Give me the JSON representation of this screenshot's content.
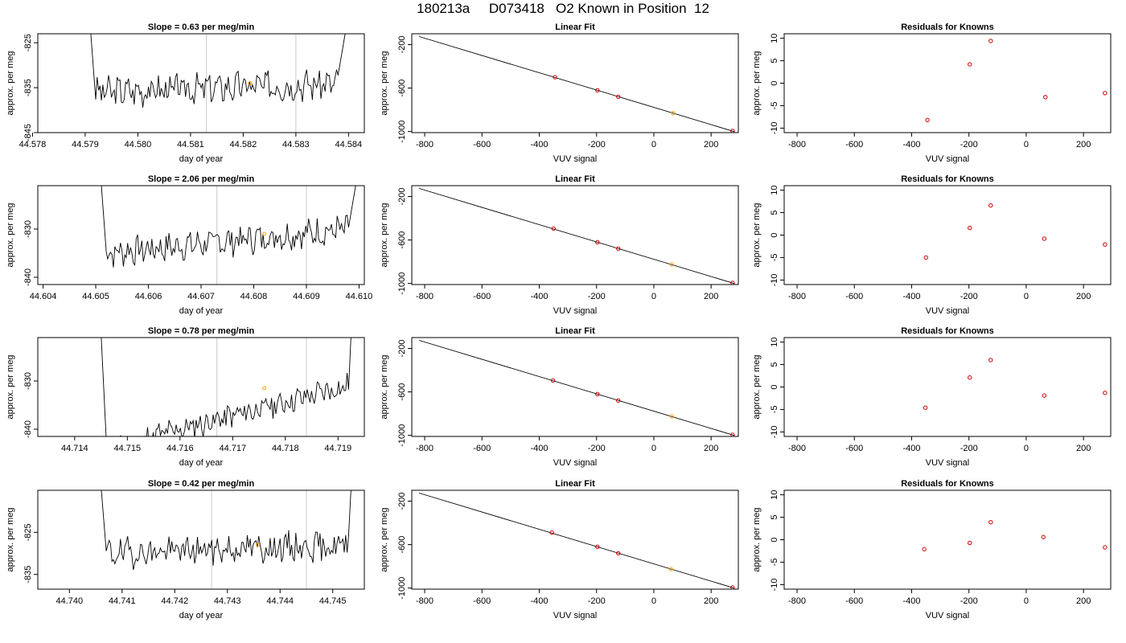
{
  "header": {
    "title": "180213a     D073418   O2 Known in Position  12"
  },
  "colors": {
    "axis": "#000000",
    "trace": "#000000",
    "vline": "#d3d3d3",
    "orange_marker": "#ffa500",
    "red_marker": "#cc0000"
  },
  "chart_data": [
    {
      "type": "line",
      "title": "Slope =  0.63  per meg/min",
      "xlabel": "day of year",
      "ylabel": "approx. per meg",
      "xlim": [
        44.5781,
        44.5843
      ],
      "ylim": [
        -845,
        -823
      ],
      "xticks": [
        44.578,
        44.579,
        44.58,
        44.581,
        44.582,
        44.583,
        44.584
      ],
      "xtick_labels": [
        "44.578",
        "44.579",
        "44.580",
        "44.581",
        "44.582",
        "44.583",
        "44.584"
      ],
      "yticks": [
        -845,
        -835,
        -825
      ],
      "ytick_labels": [
        "-845",
        "-835",
        "-825"
      ],
      "vlines": [
        44.5813,
        44.583
      ],
      "marker": {
        "x": 44.58213,
        "y": -834
      },
      "series": [
        {
          "x0": 44.5792,
          "x1": 44.5838,
          "base": -836,
          "trend": 2,
          "seed": 3,
          "noise": 1.8
        }
      ],
      "spikes": {
        "left_x": 44.5791,
        "left_y": -822,
        "right_x": 44.58395,
        "right_y": -822
      }
    },
    {
      "type": "scatter",
      "title": "Linear Fit",
      "xlabel": "VUV signal",
      "ylabel": "approx. per meg",
      "xlim": [
        -845,
        295
      ],
      "ylim": [
        -1010,
        -100
      ],
      "xticks": [
        -800,
        -600,
        -400,
        -200,
        0,
        200
      ],
      "xtick_labels": [
        "-800",
        "-600",
        "-400",
        "-200",
        "0",
        "200"
      ],
      "yticks": [
        -1000,
        -600,
        -200
      ],
      "ytick_labels": [
        "-1000",
        "-600",
        "-200"
      ],
      "line": {
        "x": [
          -820,
          280
        ],
        "y": [
          -125,
          -1000
        ]
      },
      "points": [
        {
          "x": -345,
          "y": -500,
          "color": "#cc0000"
        },
        {
          "x": -197,
          "y": -620,
          "color": "#cc0000"
        },
        {
          "x": -124,
          "y": -680,
          "color": "#cc0000"
        },
        {
          "x": 67,
          "y": -830,
          "color": "#ffa500"
        },
        {
          "x": 275,
          "y": -995,
          "color": "#cc0000"
        }
      ]
    },
    {
      "type": "scatter",
      "title": "Residuals for Knowns",
      "xlabel": "VUV signal",
      "ylabel": "approx. per meg",
      "xlim": [
        -845,
        295
      ],
      "ylim": [
        -11,
        11
      ],
      "xticks": [
        -800,
        -600,
        -400,
        -200,
        0,
        200
      ],
      "xtick_labels": [
        "-800",
        "-600",
        "-400",
        "-200",
        "0",
        "200"
      ],
      "yticks": [
        -10,
        -5,
        0,
        5,
        10
      ],
      "ytick_labels": [
        "-10",
        "-5",
        "0",
        "5",
        "10"
      ],
      "points": [
        {
          "x": -345,
          "y": -8.2,
          "color": "#cc0000"
        },
        {
          "x": -197,
          "y": 4.2,
          "color": "#cc0000"
        },
        {
          "x": -124,
          "y": 9.4,
          "color": "#cc0000"
        },
        {
          "x": 67,
          "y": -3.1,
          "color": "#cc0000"
        },
        {
          "x": 275,
          "y": -2.2,
          "color": "#cc0000"
        }
      ]
    },
    {
      "type": "line",
      "title": "Slope =  2.06  per meg/min",
      "xlabel": "day of year",
      "ylabel": "approx. per meg",
      "xlim": [
        44.6039,
        44.6101
      ],
      "ylim": [
        -841.5,
        -821
      ],
      "xticks": [
        44.604,
        44.605,
        44.606,
        44.607,
        44.608,
        44.609,
        44.61
      ],
      "xtick_labels": [
        "44.604",
        "44.605",
        "44.606",
        "44.607",
        "44.608",
        "44.609",
        "44.610"
      ],
      "yticks": [
        -840,
        -830
      ],
      "ytick_labels": [
        "-840",
        "-830"
      ],
      "vlines": [
        44.6073,
        44.609
      ],
      "marker": {
        "x": 44.6082,
        "y": -831
      },
      "series": [
        {
          "x0": 44.6052,
          "x1": 44.6098,
          "base": -835,
          "trend": 5,
          "seed": 7,
          "noise": 1.6
        }
      ],
      "spikes": {
        "left_x": 44.6051,
        "left_y": -820,
        "right_x": 44.60995,
        "right_y": -820
      }
    },
    {
      "type": "scatter",
      "title": "Linear Fit",
      "xlabel": "VUV signal",
      "ylabel": "approx. per meg",
      "xlim": [
        -845,
        295
      ],
      "ylim": [
        -1010,
        -100
      ],
      "xticks": [
        -800,
        -600,
        -400,
        -200,
        0,
        200
      ],
      "xtick_labels": [
        "-800",
        "-600",
        "-400",
        "-200",
        "0",
        "200"
      ],
      "yticks": [
        -1000,
        -600,
        -200
      ],
      "ytick_labels": [
        "-1000",
        "-600",
        "-200"
      ],
      "line": {
        "x": [
          -820,
          280
        ],
        "y": [
          -125,
          -1000
        ]
      },
      "points": [
        {
          "x": -350,
          "y": -495,
          "color": "#cc0000"
        },
        {
          "x": -197,
          "y": -620,
          "color": "#cc0000"
        },
        {
          "x": -124,
          "y": -680,
          "color": "#cc0000"
        },
        {
          "x": 63,
          "y": -825,
          "color": "#ffa500"
        },
        {
          "x": 275,
          "y": -995,
          "color": "#cc0000"
        }
      ]
    },
    {
      "type": "scatter",
      "title": "Residuals for Knowns",
      "xlabel": "VUV signal",
      "ylabel": "approx. per meg",
      "xlim": [
        -845,
        295
      ],
      "ylim": [
        -11,
        11
      ],
      "xticks": [
        -800,
        -600,
        -400,
        -200,
        0,
        200
      ],
      "xtick_labels": [
        "-800",
        "-600",
        "-400",
        "-200",
        "0",
        "200"
      ],
      "yticks": [
        -10,
        -5,
        0,
        5,
        10
      ],
      "ytick_labels": [
        "-10",
        "-5",
        "0",
        "5",
        "10"
      ],
      "points": [
        {
          "x": -350,
          "y": -5.0,
          "color": "#cc0000"
        },
        {
          "x": -197,
          "y": 1.6,
          "color": "#cc0000"
        },
        {
          "x": -124,
          "y": 6.6,
          "color": "#cc0000"
        },
        {
          "x": 63,
          "y": -0.8,
          "color": "#cc0000"
        },
        {
          "x": 275,
          "y": -2.1,
          "color": "#cc0000"
        }
      ]
    },
    {
      "type": "line",
      "title": "Slope =  0.78  per meg/min",
      "xlabel": "day of year",
      "ylabel": "approx. per meg",
      "xlim": [
        44.7133,
        44.7195
      ],
      "ylim": [
        -841.5,
        -821
      ],
      "xticks": [
        44.714,
        44.715,
        44.716,
        44.717,
        44.718,
        44.719
      ],
      "xtick_labels": [
        "44.714",
        "44.715",
        "44.716",
        "44.717",
        "44.718",
        "44.719"
      ],
      "yticks": [
        -840,
        -830
      ],
      "ytick_labels": [
        "-840",
        "-830"
      ],
      "vlines": [
        44.7167,
        44.7184
      ],
      "marker": {
        "x": 44.7176,
        "y": -831.5
      },
      "series": [
        {
          "x0": 44.7146,
          "x1": 44.7192,
          "base": -844,
          "trend": 13,
          "seed": 11,
          "noise": 1.4
        }
      ],
      "spikes": {
        "left_x": 44.7145,
        "left_y": -820,
        "right_x": 44.71925,
        "right_y": -820
      }
    },
    {
      "type": "scatter",
      "title": "Linear Fit",
      "xlabel": "VUV signal",
      "ylabel": "approx. per meg",
      "xlim": [
        -845,
        295
      ],
      "ylim": [
        -1010,
        -100
      ],
      "xticks": [
        -800,
        -600,
        -400,
        -200,
        0,
        200
      ],
      "xtick_labels": [
        "-800",
        "-600",
        "-400",
        "-200",
        "0",
        "200"
      ],
      "yticks": [
        -1000,
        -600,
        -200
      ],
      "ytick_labels": [
        "-1000",
        "-600",
        "-200"
      ],
      "line": {
        "x": [
          -820,
          280
        ],
        "y": [
          -125,
          -1000
        ]
      },
      "points": [
        {
          "x": -352,
          "y": -495,
          "color": "#cc0000"
        },
        {
          "x": -197,
          "y": -620,
          "color": "#cc0000"
        },
        {
          "x": -124,
          "y": -680,
          "color": "#cc0000"
        },
        {
          "x": 63,
          "y": -825,
          "color": "#ffa500"
        },
        {
          "x": 275,
          "y": -995,
          "color": "#cc0000"
        }
      ]
    },
    {
      "type": "scatter",
      "title": "Residuals for Knowns",
      "xlabel": "VUV signal",
      "ylabel": "approx. per meg",
      "xlim": [
        -845,
        295
      ],
      "ylim": [
        -11,
        11
      ],
      "xticks": [
        -800,
        -600,
        -400,
        -200,
        0,
        200
      ],
      "xtick_labels": [
        "-800",
        "-600",
        "-400",
        "-200",
        "0",
        "200"
      ],
      "yticks": [
        -10,
        -5,
        0,
        5,
        10
      ],
      "ytick_labels": [
        "-10",
        "-5",
        "0",
        "5",
        "10"
      ],
      "points": [
        {
          "x": -352,
          "y": -4.6,
          "color": "#cc0000"
        },
        {
          "x": -197,
          "y": 2.1,
          "color": "#cc0000"
        },
        {
          "x": -124,
          "y": 6.0,
          "color": "#cc0000"
        },
        {
          "x": 63,
          "y": -1.9,
          "color": "#cc0000"
        },
        {
          "x": 275,
          "y": -1.3,
          "color": "#cc0000"
        }
      ]
    },
    {
      "type": "line",
      "title": "Slope =  0.42  per meg/min",
      "xlabel": "day of year",
      "ylabel": "approx. per meg",
      "xlim": [
        44.7394,
        44.7456
      ],
      "ylim": [
        -838.5,
        -815
      ],
      "xticks": [
        44.74,
        44.741,
        44.742,
        44.743,
        44.744,
        44.745
      ],
      "xtick_labels": [
        "44.740",
        "44.741",
        "44.742",
        "44.743",
        "44.744",
        "44.745"
      ],
      "yticks": [
        -835,
        -825
      ],
      "ytick_labels": [
        "-835",
        "-825"
      ],
      "vlines": [
        44.7427,
        44.7445
      ],
      "marker": {
        "x": 44.74358,
        "y": -828
      },
      "series": [
        {
          "x0": 44.7407,
          "x1": 44.7453,
          "base": -830,
          "trend": 2,
          "seed": 19,
          "noise": 1.9
        }
      ],
      "spikes": {
        "left_x": 44.7406,
        "left_y": -814,
        "right_x": 44.74535,
        "right_y": -814
      }
    },
    {
      "type": "scatter",
      "title": "Linear Fit",
      "xlabel": "VUV signal",
      "ylabel": "approx. per meg",
      "xlim": [
        -845,
        295
      ],
      "ylim": [
        -1010,
        -100
      ],
      "xticks": [
        -800,
        -600,
        -400,
        -200,
        0,
        200
      ],
      "xtick_labels": [
        "-800",
        "-600",
        "-400",
        "-200",
        "0",
        "200"
      ],
      "yticks": [
        -1000,
        -600,
        -200
      ],
      "ytick_labels": [
        "-1000",
        "-600",
        "-200"
      ],
      "line": {
        "x": [
          -820,
          280
        ],
        "y": [
          -125,
          -1000
        ]
      },
      "points": [
        {
          "x": -356,
          "y": -490,
          "color": "#cc0000"
        },
        {
          "x": -197,
          "y": -620,
          "color": "#cc0000"
        },
        {
          "x": -124,
          "y": -680,
          "color": "#cc0000"
        },
        {
          "x": 60,
          "y": -825,
          "color": "#ffa500"
        },
        {
          "x": 275,
          "y": -995,
          "color": "#cc0000"
        }
      ]
    },
    {
      "type": "scatter",
      "title": "Residuals for Knowns",
      "xlabel": "VUV signal",
      "ylabel": "approx. per meg",
      "xlim": [
        -845,
        295
      ],
      "ylim": [
        -11,
        11
      ],
      "xticks": [
        -800,
        -600,
        -400,
        -200,
        0,
        200
      ],
      "xtick_labels": [
        "-800",
        "-600",
        "-400",
        "-200",
        "0",
        "200"
      ],
      "yticks": [
        -10,
        -5,
        0,
        5,
        10
      ],
      "ytick_labels": [
        "-10",
        "-5",
        "0",
        "5",
        "10"
      ],
      "points": [
        {
          "x": -356,
          "y": -2.1,
          "color": "#cc0000"
        },
        {
          "x": -197,
          "y": -0.7,
          "color": "#cc0000"
        },
        {
          "x": -124,
          "y": 3.9,
          "color": "#cc0000"
        },
        {
          "x": 60,
          "y": 0.6,
          "color": "#cc0000"
        },
        {
          "x": 275,
          "y": -1.7,
          "color": "#cc0000"
        }
      ]
    }
  ]
}
